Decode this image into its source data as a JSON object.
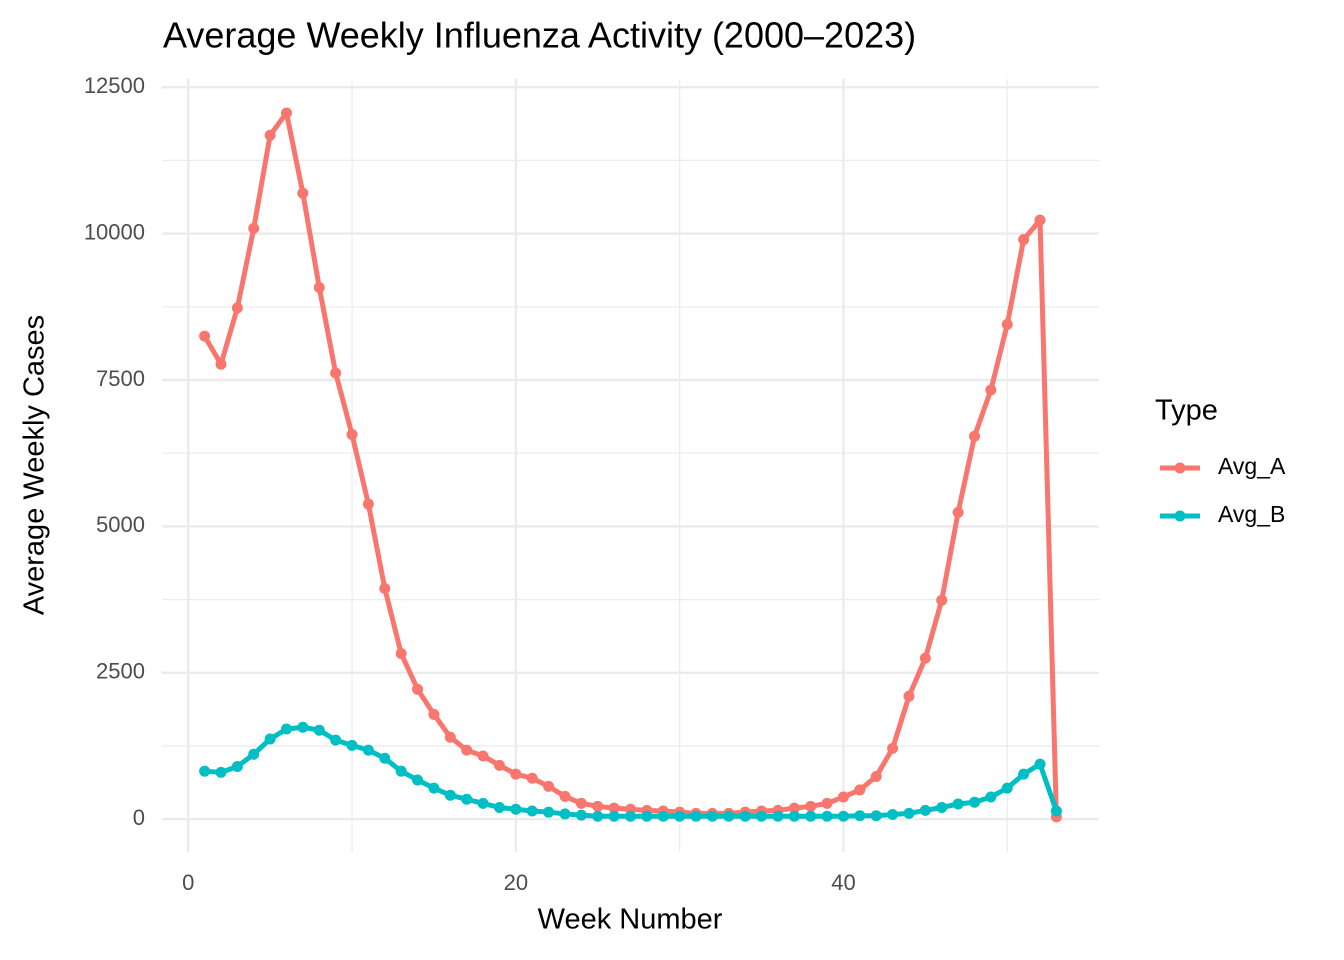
{
  "chart_data": {
    "type": "line",
    "title": "Average Weekly Influenza Activity (2000–2023)",
    "x_label": "Week Number",
    "y_label": "Average Weekly Cases",
    "legend_title": "Type",
    "legend_position": "right",
    "grid": true,
    "x": [
      1,
      2,
      3,
      4,
      5,
      6,
      7,
      8,
      9,
      10,
      11,
      12,
      13,
      14,
      15,
      16,
      17,
      18,
      19,
      20,
      21,
      22,
      23,
      24,
      25,
      26,
      27,
      28,
      29,
      30,
      31,
      32,
      33,
      34,
      35,
      36,
      37,
      38,
      39,
      40,
      41,
      42,
      43,
      44,
      45,
      46,
      47,
      48,
      49,
      50,
      51,
      52,
      53
    ],
    "series": [
      {
        "name": "Avg_A",
        "color": "#F8766D",
        "values": [
          8250,
          7770,
          8730,
          10090,
          11680,
          12060,
          10690,
          9080,
          7620,
          6570,
          5380,
          3940,
          2830,
          2220,
          1790,
          1400,
          1180,
          1080,
          920,
          770,
          700,
          560,
          390,
          270,
          220,
          190,
          170,
          150,
          140,
          120,
          100,
          100,
          100,
          120,
          140,
          150,
          190,
          220,
          270,
          380,
          500,
          730,
          1210,
          2100,
          2750,
          3740,
          5240,
          6540,
          7330,
          8450,
          9900,
          10230,
          40
        ]
      },
      {
        "name": "Avg_B",
        "color": "#00BFC4",
        "values": [
          820,
          800,
          900,
          1110,
          1370,
          1540,
          1570,
          1520,
          1350,
          1260,
          1180,
          1040,
          820,
          670,
          530,
          410,
          340,
          270,
          200,
          170,
          140,
          120,
          90,
          70,
          50,
          50,
          50,
          50,
          50,
          50,
          50,
          50,
          50,
          50,
          50,
          50,
          50,
          50,
          50,
          50,
          60,
          60,
          80,
          100,
          150,
          200,
          260,
          290,
          380,
          530,
          770,
          940,
          140
        ]
      }
    ],
    "xlim": [
      -1.6,
      55.6
    ],
    "xticks": [
      0,
      20,
      40
    ],
    "ylim": [
      -560,
      12640
    ],
    "yticks": [
      0,
      2500,
      5000,
      7500,
      10000,
      12500
    ]
  }
}
